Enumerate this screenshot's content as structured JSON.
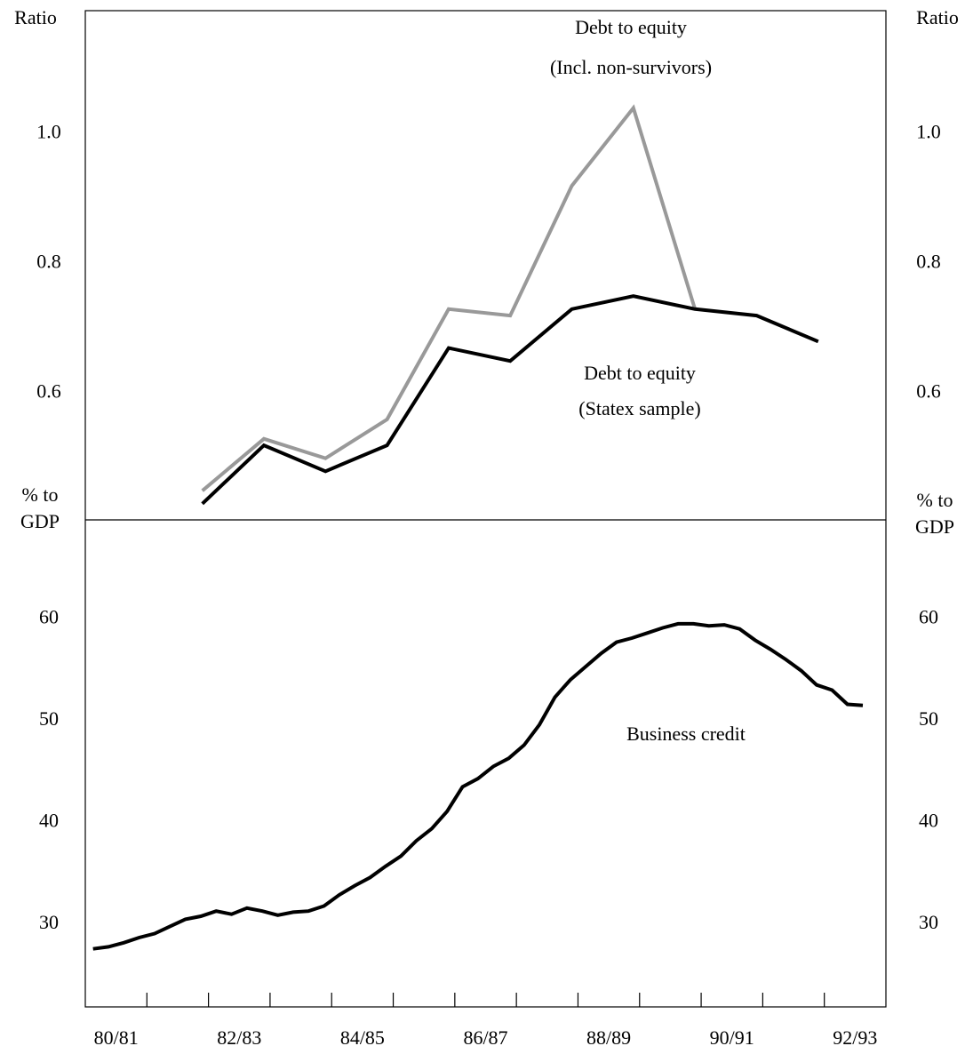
{
  "chart_data": [
    {
      "type": "line",
      "ylabel": "Ratio",
      "xlim": [
        1980.5,
        1993.5
      ],
      "ylim": [
        0.405,
        1.19
      ],
      "yticks": [
        0.6,
        0.8,
        {
          "value": 1.0,
          "label": "1.0"
        }
      ],
      "x": [
        1982.4,
        1983.4,
        1984.4,
        1985.4,
        1986.4,
        1987.4,
        1988.4,
        1989.4,
        1990.4,
        1991.4,
        1992.4
      ],
      "series": [
        {
          "name": [
            "Debt to equity",
            "(Incl. non-survivors)"
          ],
          "color": "#999999",
          "values": [
            0.45,
            0.53,
            0.5,
            0.56,
            0.73,
            0.72,
            0.92,
            1.04,
            0.73,
            null,
            null
          ]
        },
        {
          "name": [
            "Debt to equity",
            "(Statex sample)"
          ],
          "color": "#000000",
          "values": [
            0.43,
            0.52,
            0.48,
            0.52,
            0.67,
            0.65,
            0.73,
            0.75,
            0.73,
            0.72,
            0.68
          ]
        }
      ]
    },
    {
      "type": "line",
      "ylabel": [
        "% to",
        "GDP"
      ],
      "xlim": [
        1980.5,
        1993.5
      ],
      "ylim": [
        21.9,
        69.7
      ],
      "yticks": [
        30,
        40,
        50,
        60
      ],
      "xticks": [
        {
          "value": 1981,
          "label": "80/81"
        },
        {
          "value": 1983,
          "label": "82/83"
        },
        {
          "value": 1985,
          "label": "84/85"
        },
        {
          "value": 1987,
          "label": "86/87"
        },
        {
          "value": 1989,
          "label": "88/89"
        },
        {
          "value": 1991,
          "label": "90/91"
        },
        {
          "value": 1993,
          "label": "92/93"
        }
      ],
      "x_tick_marks": [
        1981.5,
        1982.5,
        1983.5,
        1984.5,
        1985.5,
        1986.5,
        1987.5,
        1988.5,
        1989.5,
        1990.5,
        1991.5,
        1992.5
      ],
      "x": [
        1980.625,
        1980.875,
        1981.125,
        1981.375,
        1981.625,
        1981.875,
        1982.125,
        1982.375,
        1982.625,
        1982.875,
        1983.125,
        1983.375,
        1983.625,
        1983.875,
        1984.125,
        1984.375,
        1984.625,
        1984.875,
        1985.125,
        1985.375,
        1985.625,
        1985.875,
        1986.125,
        1986.375,
        1986.625,
        1986.875,
        1987.125,
        1987.375,
        1987.625,
        1987.875,
        1988.125,
        1988.375,
        1988.625,
        1988.875,
        1989.125,
        1989.375,
        1989.625,
        1989.875,
        1990.125,
        1990.375,
        1990.625,
        1990.875,
        1991.125,
        1991.375,
        1991.625,
        1991.875,
        1992.125,
        1992.375,
        1992.625,
        1992.875,
        1993.125
      ],
      "series": [
        {
          "name": "Business credit",
          "color": "#000000",
          "values": [
            27.6,
            27.8,
            28.2,
            28.7,
            29.1,
            29.8,
            30.5,
            30.8,
            31.3,
            31.0,
            31.6,
            31.3,
            30.9,
            31.2,
            31.3,
            31.8,
            32.9,
            33.8,
            34.6,
            35.7,
            36.7,
            38.2,
            39.4,
            41.1,
            43.5,
            44.3,
            45.5,
            46.3,
            47.6,
            49.6,
            52.3,
            54.0,
            55.3,
            56.6,
            57.7,
            58.1,
            58.6,
            59.1,
            59.5,
            59.5,
            59.3,
            59.4,
            59.0,
            57.9,
            57.0,
            56.0,
            54.9,
            53.5,
            53.0,
            51.6,
            51.5
          ]
        }
      ]
    }
  ]
}
